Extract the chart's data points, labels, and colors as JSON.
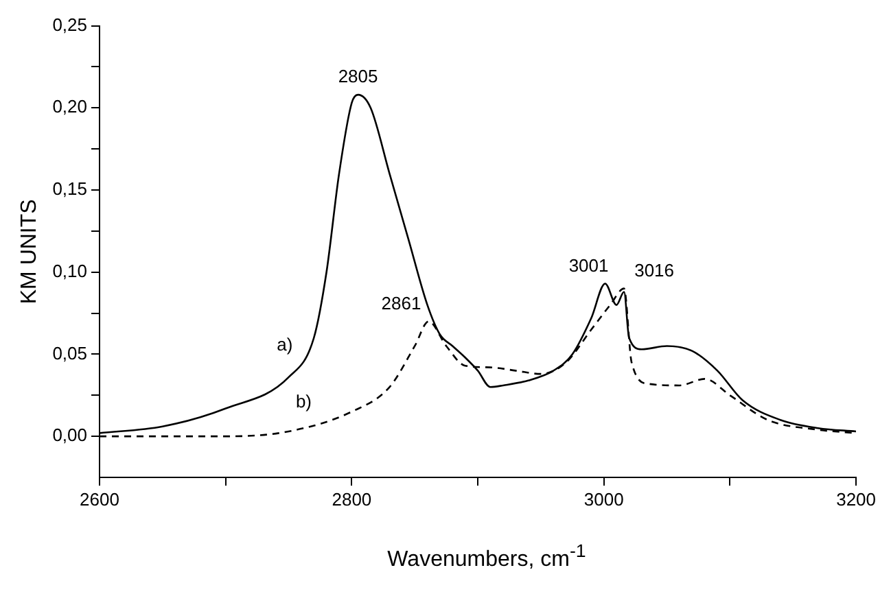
{
  "chart_data": {
    "type": "line",
    "xlabel": "Wavenumbers, cm$^{-1}$",
    "ylabel": "KM UNITS",
    "xlim": [
      2600,
      3200
    ],
    "ylim": [
      -0.025,
      0.25
    ],
    "xticks": [
      2600,
      {
        "value": 2700,
        "label": null
      },
      2800,
      {
        "value": 2900,
        "label": null
      },
      3000,
      {
        "value": 3100,
        "label": null
      },
      3200
    ],
    "yticks": [
      {
        "value": 0,
        "label": "0,00"
      },
      {
        "value": 0.025,
        "label": null
      },
      {
        "value": 0.05,
        "label": "0,05"
      },
      {
        "value": 0.075,
        "label": null
      },
      {
        "value": 0.1,
        "label": "0,10"
      },
      {
        "value": 0.125,
        "label": null
      },
      {
        "value": 0.15,
        "label": "0,15"
      },
      {
        "value": 0.175,
        "label": null
      },
      {
        "value": 0.2,
        "label": "0,20"
      },
      {
        "value": 0.225,
        "label": null
      },
      {
        "value": 0.25,
        "label": "0,25"
      }
    ],
    "grid": false,
    "legend": false,
    "marker": "none",
    "series": [
      {
        "color": "#000000",
        "line_style": "solid",
        "x": [
          2600,
          2650,
          2700,
          2750,
          2770,
          2780,
          2790,
          2800,
          2805,
          2815,
          2830,
          2845,
          2860,
          2870,
          2880,
          2890,
          2900,
          2910,
          2920,
          2940,
          2960,
          2975,
          2990,
          3001,
          3010,
          3016,
          3020,
          3030,
          3050,
          3070,
          3090,
          3110,
          3140,
          3170,
          3200
        ],
        "values": [
          0.002,
          0.006,
          0.017,
          0.036,
          0.06,
          0.1,
          0.16,
          0.203,
          0.208,
          0.2,
          0.16,
          0.12,
          0.08,
          0.062,
          0.055,
          0.048,
          0.04,
          0.03,
          0.031,
          0.034,
          0.04,
          0.05,
          0.072,
          0.093,
          0.08,
          0.088,
          0.06,
          0.053,
          0.055,
          0.052,
          0.04,
          0.022,
          0.01,
          0.005,
          0.003
        ]
      },
      {
        "color": "#000000",
        "line_style": "dashed",
        "x": [
          2600,
          2700,
          2750,
          2800,
          2830,
          2850,
          2861,
          2875,
          2890,
          2910,
          2930,
          2950,
          2970,
          2990,
          3005,
          3016,
          3022,
          3035,
          3060,
          3080,
          3100,
          3130,
          3170,
          3200
        ],
        "values": [
          0,
          0,
          0.003,
          0.015,
          0.03,
          0.055,
          0.07,
          0.055,
          0.043,
          0.042,
          0.04,
          0.038,
          0.045,
          0.065,
          0.08,
          0.09,
          0.045,
          0.032,
          0.031,
          0.035,
          0.025,
          0.01,
          0.004,
          0.002
        ]
      }
    ],
    "annotations": [
      {
        "text": "2805",
        "x": 2805,
        "y": 0.208
      },
      {
        "text": "2861",
        "x": 2861,
        "y": 0.07
      },
      {
        "text": "3001",
        "x": 3001,
        "y": 0.093
      },
      {
        "text": "3016",
        "x": 3016,
        "y": 0.09
      },
      {
        "text": "a)",
        "x": 2760,
        "y": 0.045
      },
      {
        "text": "b)",
        "x": 2775,
        "y": 0.01
      }
    ]
  }
}
